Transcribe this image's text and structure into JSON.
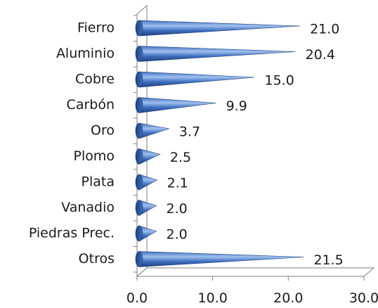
{
  "chart_data": {
    "type": "bar",
    "orientation": "horizontal",
    "style": "3d-cone",
    "categories": [
      "Fierro",
      "Aluminio",
      "Cobre",
      "Carbón",
      "Oro",
      "Plomo",
      "Plata",
      "Vanadio",
      "Piedras Prec.",
      "Otros"
    ],
    "values": [
      21.0,
      20.4,
      15.0,
      9.9,
      3.7,
      2.5,
      2.1,
      2.0,
      2.0,
      21.5
    ],
    "value_labels": [
      "21.0",
      "20.4",
      "15.0",
      "9.9",
      "3.7",
      "2.5",
      "2.1",
      "2.0",
      "2.0",
      "21.5"
    ],
    "title": "",
    "xlabel": "",
    "ylabel": "",
    "xlim": [
      0,
      30
    ],
    "x_ticks": [
      0,
      10,
      20,
      30
    ],
    "x_tick_labels": [
      "0.0",
      "10.0",
      "20.0",
      "30.0"
    ],
    "grid": false,
    "legend": "none",
    "colors": {
      "cone_dark": "#1f3f7a",
      "cone_mid": "#3f6fc0",
      "cone_light": "#9ec0ee",
      "axis": "#7f7f7f"
    }
  }
}
